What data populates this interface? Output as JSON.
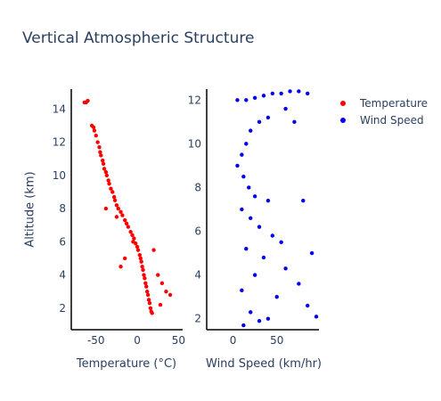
{
  "chart_data": {
    "type": "scatter",
    "title": "Vertical Atmospheric Structure",
    "ylabel": "Altitude (km)",
    "legend_position": "top-right",
    "series": [
      {
        "name": "Temperature",
        "color": "#ff0000",
        "xlabel": "Temperature (°C)",
        "xlim": [
          -80,
          55
        ],
        "ylim": [
          0.7,
          15.2
        ],
        "xticks": [
          -50,
          0,
          50
        ],
        "yticks": [
          2,
          4,
          6,
          8,
          10,
          12,
          14
        ],
        "points": [
          [
            -62,
            14.4
          ],
          [
            -64,
            14.4
          ],
          [
            -60,
            14.5
          ],
          [
            -55,
            13.0
          ],
          [
            -53,
            12.9
          ],
          [
            -52,
            12.7
          ],
          [
            -50,
            12.4
          ],
          [
            -48,
            12.0
          ],
          [
            -46,
            11.7
          ],
          [
            -45,
            11.4
          ],
          [
            -44,
            11.2
          ],
          [
            -42,
            10.9
          ],
          [
            -41,
            10.7
          ],
          [
            -40,
            10.4
          ],
          [
            -38,
            10.2
          ],
          [
            -37,
            10.0
          ],
          [
            -35,
            9.7
          ],
          [
            -34,
            9.5
          ],
          [
            -32,
            9.2
          ],
          [
            -30,
            9.0
          ],
          [
            -28,
            8.7
          ],
          [
            -27,
            8.5
          ],
          [
            -25,
            8.2
          ],
          [
            -23,
            8.0
          ],
          [
            -20,
            7.8
          ],
          [
            -18,
            7.6
          ],
          [
            -15,
            7.3
          ],
          [
            -13,
            7.1
          ],
          [
            -11,
            6.9
          ],
          [
            -8,
            6.6
          ],
          [
            -6,
            6.4
          ],
          [
            -4,
            6.2
          ],
          [
            -2,
            5.9
          ],
          [
            0,
            5.7
          ],
          [
            1,
            5.5
          ],
          [
            3,
            5.2
          ],
          [
            4,
            5.0
          ],
          [
            5,
            4.8
          ],
          [
            6,
            4.5
          ],
          [
            7,
            4.3
          ],
          [
            8,
            4.0
          ],
          [
            9,
            3.8
          ],
          [
            10,
            3.5
          ],
          [
            11,
            3.3
          ],
          [
            12,
            3.0
          ],
          [
            13,
            2.8
          ],
          [
            14,
            2.5
          ],
          [
            15,
            2.3
          ],
          [
            16,
            2.0
          ],
          [
            17,
            1.8
          ],
          [
            18,
            1.7
          ],
          [
            -38,
            8.0
          ],
          [
            -25,
            7.5
          ],
          [
            -5,
            6.0
          ],
          [
            20,
            5.5
          ],
          [
            25,
            4.0
          ],
          [
            30,
            3.5
          ],
          [
            -20,
            4.5
          ],
          [
            -15,
            5.0
          ],
          [
            35,
            3.0
          ],
          [
            40,
            2.8
          ],
          [
            28,
            2.2
          ]
        ]
      },
      {
        "name": "Wind Speed",
        "color": "#0000ee",
        "xlabel": "Wind Speed (km/hr)",
        "xlim": [
          -30,
          98
        ],
        "ylim": [
          1.5,
          12.5
        ],
        "xticks": [
          0,
          50
        ],
        "yticks": [
          2,
          4,
          6,
          8,
          10,
          12
        ],
        "points": [
          [
            5,
            12.0
          ],
          [
            15,
            12.0
          ],
          [
            25,
            12.1
          ],
          [
            35,
            12.2
          ],
          [
            45,
            12.3
          ],
          [
            55,
            12.3
          ],
          [
            65,
            12.4
          ],
          [
            75,
            12.4
          ],
          [
            85,
            12.3
          ],
          [
            60,
            11.6
          ],
          [
            40,
            11.2
          ],
          [
            30,
            11.0
          ],
          [
            70,
            11.0
          ],
          [
            20,
            10.6
          ],
          [
            15,
            10.0
          ],
          [
            10,
            9.5
          ],
          [
            5,
            9.0
          ],
          [
            12,
            8.5
          ],
          [
            18,
            8.0
          ],
          [
            25,
            7.6
          ],
          [
            40,
            7.4
          ],
          [
            80,
            7.4
          ],
          [
            10,
            7.0
          ],
          [
            20,
            6.6
          ],
          [
            30,
            6.2
          ],
          [
            45,
            5.8
          ],
          [
            55,
            5.5
          ],
          [
            15,
            5.2
          ],
          [
            35,
            4.8
          ],
          [
            90,
            5.0
          ],
          [
            60,
            4.3
          ],
          [
            25,
            4.0
          ],
          [
            75,
            3.6
          ],
          [
            10,
            3.3
          ],
          [
            50,
            3.0
          ],
          [
            85,
            2.6
          ],
          [
            20,
            2.3
          ],
          [
            40,
            2.0
          ],
          [
            95,
            2.1
          ],
          [
            12,
            1.7
          ],
          [
            30,
            1.9
          ]
        ]
      }
    ]
  }
}
